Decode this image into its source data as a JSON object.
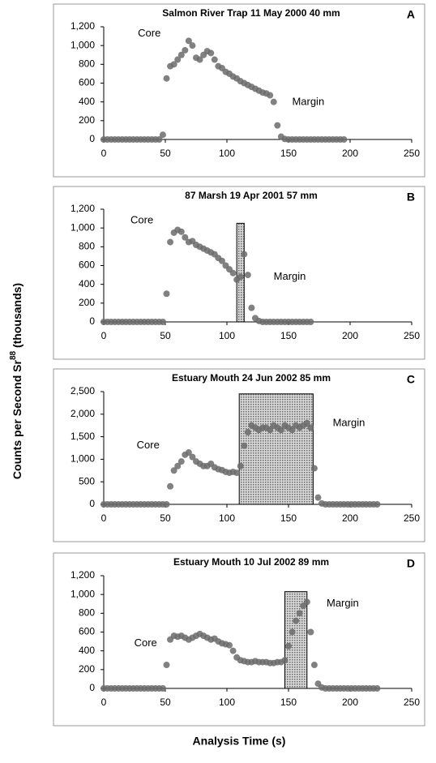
{
  "ylabel": [
    "Counts per Second Sr",
    "88",
    " (thousands)"
  ],
  "xlabel": "Analysis Time (s)",
  "chart_data": [
    {
      "type": "scatter",
      "title": "Salmon River Trap 11 May 2000 40 mm",
      "label": "A",
      "annotations": [
        "Core",
        "Margin"
      ],
      "xlim": [
        0,
        250
      ],
      "xticks": [
        0,
        50,
        100,
        150,
        200,
        250
      ],
      "ylim": [
        0,
        1200
      ],
      "yticks": [
        0,
        200,
        400,
        600,
        800,
        {
          "value": 1000,
          "label": "1,000"
        },
        {
          "value": 1200,
          "label": "1,200"
        }
      ],
      "series": [
        {
          "color": "#6b6b6b",
          "x": [
            0,
            3,
            6,
            9,
            12,
            15,
            18,
            21,
            24,
            27,
            30,
            33,
            36,
            39,
            42,
            45,
            48,
            51,
            54,
            57,
            60,
            63,
            66,
            69,
            72,
            75,
            78,
            81,
            84,
            87,
            90,
            93,
            96,
            99,
            102,
            105,
            108,
            111,
            114,
            117,
            120,
            123,
            126,
            129,
            132,
            135,
            138,
            141,
            144,
            147,
            150,
            153,
            156,
            159,
            162,
            165,
            168,
            171,
            174,
            177,
            180,
            183,
            186,
            189,
            192,
            195
          ],
          "values": [
            0,
            0,
            0,
            0,
            0,
            0,
            0,
            0,
            0,
            0,
            0,
            0,
            0,
            0,
            0,
            0,
            50,
            650,
            780,
            800,
            850,
            900,
            950,
            1050,
            1000,
            870,
            850,
            900,
            940,
            920,
            850,
            780,
            760,
            720,
            700,
            670,
            650,
            620,
            600,
            580,
            560,
            540,
            520,
            500,
            490,
            470,
            400,
            150,
            30,
            5,
            0,
            0,
            0,
            0,
            0,
            0,
            0,
            0,
            0,
            0,
            0,
            0,
            0,
            0,
            0,
            0
          ]
        }
      ]
    },
    {
      "type": "scatter",
      "title": "87 Marsh 19 Apr 2001 57 mm",
      "label": "B",
      "annotations": [
        "Core",
        "Margin"
      ],
      "highlight": {
        "x": [
          108,
          114
        ],
        "y": [
          0,
          1050
        ]
      },
      "xlim": [
        0,
        250
      ],
      "xticks": [
        0,
        50,
        100,
        150,
        200,
        250
      ],
      "ylim": [
        0,
        1200
      ],
      "yticks": [
        0,
        200,
        400,
        600,
        800,
        {
          "value": 1000,
          "label": "1,000"
        },
        {
          "value": 1200,
          "label": "1,200"
        }
      ],
      "series": [
        {
          "color": "#6b6b6b",
          "x": [
            0,
            3,
            6,
            9,
            12,
            15,
            18,
            21,
            24,
            27,
            30,
            33,
            36,
            39,
            42,
            45,
            48,
            51,
            54,
            57,
            60,
            63,
            66,
            69,
            72,
            75,
            78,
            81,
            84,
            87,
            90,
            93,
            96,
            99,
            102,
            105,
            108,
            111,
            114,
            117,
            120,
            123,
            126,
            129,
            132,
            135,
            138,
            141,
            144,
            147,
            150,
            153,
            156,
            159,
            162,
            165,
            168
          ],
          "values": [
            0,
            0,
            0,
            0,
            0,
            0,
            0,
            0,
            0,
            0,
            0,
            0,
            0,
            0,
            0,
            0,
            0,
            300,
            850,
            950,
            980,
            960,
            900,
            850,
            860,
            820,
            800,
            780,
            760,
            740,
            720,
            680,
            650,
            600,
            560,
            520,
            450,
            480,
            720,
            500,
            150,
            40,
            10,
            0,
            0,
            0,
            0,
            0,
            0,
            0,
            0,
            0,
            0,
            0,
            0,
            0,
            0
          ]
        }
      ]
    },
    {
      "type": "scatter",
      "title": "Estuary Mouth 24 Jun 2002 85 mm",
      "label": "C",
      "annotations": [
        "Core",
        "Margin"
      ],
      "highlight": {
        "x": [
          110,
          170
        ],
        "y": [
          0,
          2450
        ]
      },
      "xlim": [
        0,
        250
      ],
      "xticks": [
        0,
        50,
        100,
        150,
        200,
        250
      ],
      "ylim": [
        0,
        2500
      ],
      "yticks": [
        0,
        500,
        {
          "value": 1000,
          "label": "1,000"
        },
        {
          "value": 1500,
          "label": "1,500"
        },
        {
          "value": 2000,
          "label": "2,000"
        },
        {
          "value": 2500,
          "label": "2,500"
        }
      ],
      "series": [
        {
          "color": "#6b6b6b",
          "x": [
            0,
            3,
            6,
            9,
            12,
            15,
            18,
            21,
            24,
            27,
            30,
            33,
            36,
            39,
            42,
            45,
            48,
            51,
            54,
            57,
            60,
            63,
            66,
            69,
            72,
            75,
            78,
            81,
            84,
            87,
            90,
            93,
            96,
            99,
            102,
            105,
            108,
            111,
            114,
            117,
            120,
            123,
            126,
            129,
            132,
            135,
            138,
            141,
            144,
            147,
            150,
            153,
            156,
            159,
            162,
            165,
            168,
            171,
            174,
            177,
            180,
            183,
            186,
            189,
            192,
            195,
            198,
            201,
            204,
            207,
            210,
            213,
            216,
            219,
            222
          ],
          "values": [
            0,
            0,
            0,
            0,
            0,
            0,
            0,
            0,
            0,
            0,
            0,
            0,
            0,
            0,
            0,
            0,
            0,
            0,
            400,
            750,
            850,
            950,
            1100,
            1150,
            1050,
            950,
            900,
            850,
            850,
            900,
            820,
            780,
            760,
            720,
            700,
            720,
            700,
            850,
            1300,
            1600,
            1750,
            1700,
            1650,
            1700,
            1700,
            1650,
            1750,
            1700,
            1650,
            1750,
            1700,
            1650,
            1750,
            1700,
            1750,
            1800,
            1700,
            800,
            150,
            20,
            0,
            0,
            0,
            0,
            0,
            0,
            0,
            0,
            0,
            0,
            0,
            0,
            0,
            0,
            0
          ]
        }
      ]
    },
    {
      "type": "scatter",
      "title": "Estuary Mouth 10 Jul 2002 89 mm",
      "label": "D",
      "annotations": [
        "Core",
        "Margin"
      ],
      "highlight": {
        "x": [
          147,
          165
        ],
        "y": [
          0,
          1030
        ]
      },
      "xlim": [
        0,
        250
      ],
      "xticks": [
        0,
        50,
        100,
        150,
        200,
        250
      ],
      "ylim": [
        0,
        1200
      ],
      "yticks": [
        0,
        200,
        400,
        600,
        800,
        {
          "value": 1000,
          "label": "1,000"
        },
        {
          "value": 1200,
          "label": "1,200"
        }
      ],
      "series": [
        {
          "color": "#6b6b6b",
          "x": [
            0,
            3,
            6,
            9,
            12,
            15,
            18,
            21,
            24,
            27,
            30,
            33,
            36,
            39,
            42,
            45,
            48,
            51,
            54,
            57,
            60,
            63,
            66,
            69,
            72,
            75,
            78,
            81,
            84,
            87,
            90,
            93,
            96,
            99,
            102,
            105,
            108,
            111,
            114,
            117,
            120,
            123,
            126,
            129,
            132,
            135,
            138,
            141,
            144,
            147,
            150,
            153,
            156,
            159,
            162,
            165,
            168,
            171,
            174,
            177,
            180,
            183,
            186,
            189,
            192,
            195,
            198,
            201,
            204,
            207,
            210,
            213,
            216,
            219,
            222
          ],
          "values": [
            0,
            0,
            0,
            0,
            0,
            0,
            0,
            0,
            0,
            0,
            0,
            0,
            0,
            0,
            0,
            0,
            0,
            250,
            520,
            560,
            550,
            560,
            540,
            520,
            540,
            560,
            580,
            560,
            540,
            520,
            530,
            500,
            480,
            470,
            460,
            400,
            330,
            300,
            290,
            280,
            280,
            290,
            280,
            280,
            280,
            270,
            270,
            280,
            280,
            300,
            450,
            600,
            720,
            800,
            880,
            920,
            600,
            250,
            50,
            10,
            0,
            0,
            0,
            0,
            0,
            0,
            0,
            0,
            0,
            0,
            0,
            0,
            0,
            0,
            0
          ]
        }
      ]
    }
  ]
}
